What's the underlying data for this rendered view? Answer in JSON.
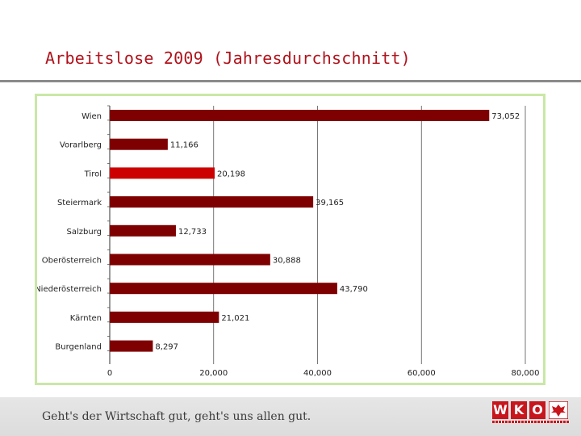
{
  "slide": {
    "title": "Arbeitslose 2009 (Jahresdurchschnitt)",
    "footer_slogan": "Geht's der Wirtschaft gut, geht's uns allen gut.",
    "logo_letters": [
      "W",
      "K",
      "O"
    ],
    "colors": {
      "title": "#b0121b",
      "bar": "#7f0000",
      "bar_highlight": "#cc0000",
      "frame": "#c9e7a6"
    }
  },
  "chart_data": {
    "type": "bar",
    "orientation": "horizontal",
    "title": "",
    "xlabel": "",
    "ylabel": "",
    "categories": [
      "Wien",
      "Vorarlberg",
      "Tirol",
      "Steiermark",
      "Salzburg",
      "Oberösterreich",
      "Niederösterreich",
      "Kärnten",
      "Burgenland"
    ],
    "values": [
      73052,
      11166,
      20198,
      39165,
      12733,
      30888,
      43790,
      21021,
      8297
    ],
    "value_labels": [
      "73,052",
      "11,166",
      "20,198",
      "39,165",
      "12,733",
      "30,888",
      "43,790",
      "21,021",
      "8,297"
    ],
    "highlight": "Tirol",
    "xlim": [
      0,
      80000
    ],
    "x_ticks": [
      0,
      20000,
      40000,
      60000,
      80000
    ],
    "x_tick_labels": [
      "0",
      "20,000",
      "40,000",
      "60,000",
      "80,000"
    ],
    "grid": true,
    "legend": "none"
  }
}
